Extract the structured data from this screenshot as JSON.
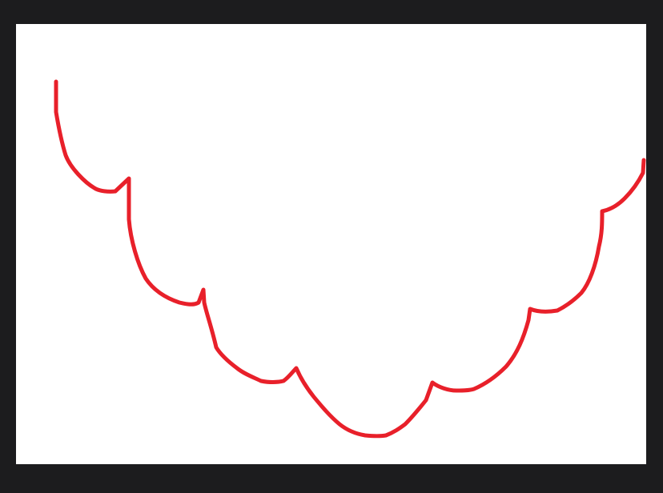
{
  "viewer": {
    "background_color": "#1c1c1e",
    "canvas_color": "#ffffff"
  },
  "drawing": {
    "stroke_color": "#e8202a",
    "stroke_style": "freehand scalloped curve"
  }
}
